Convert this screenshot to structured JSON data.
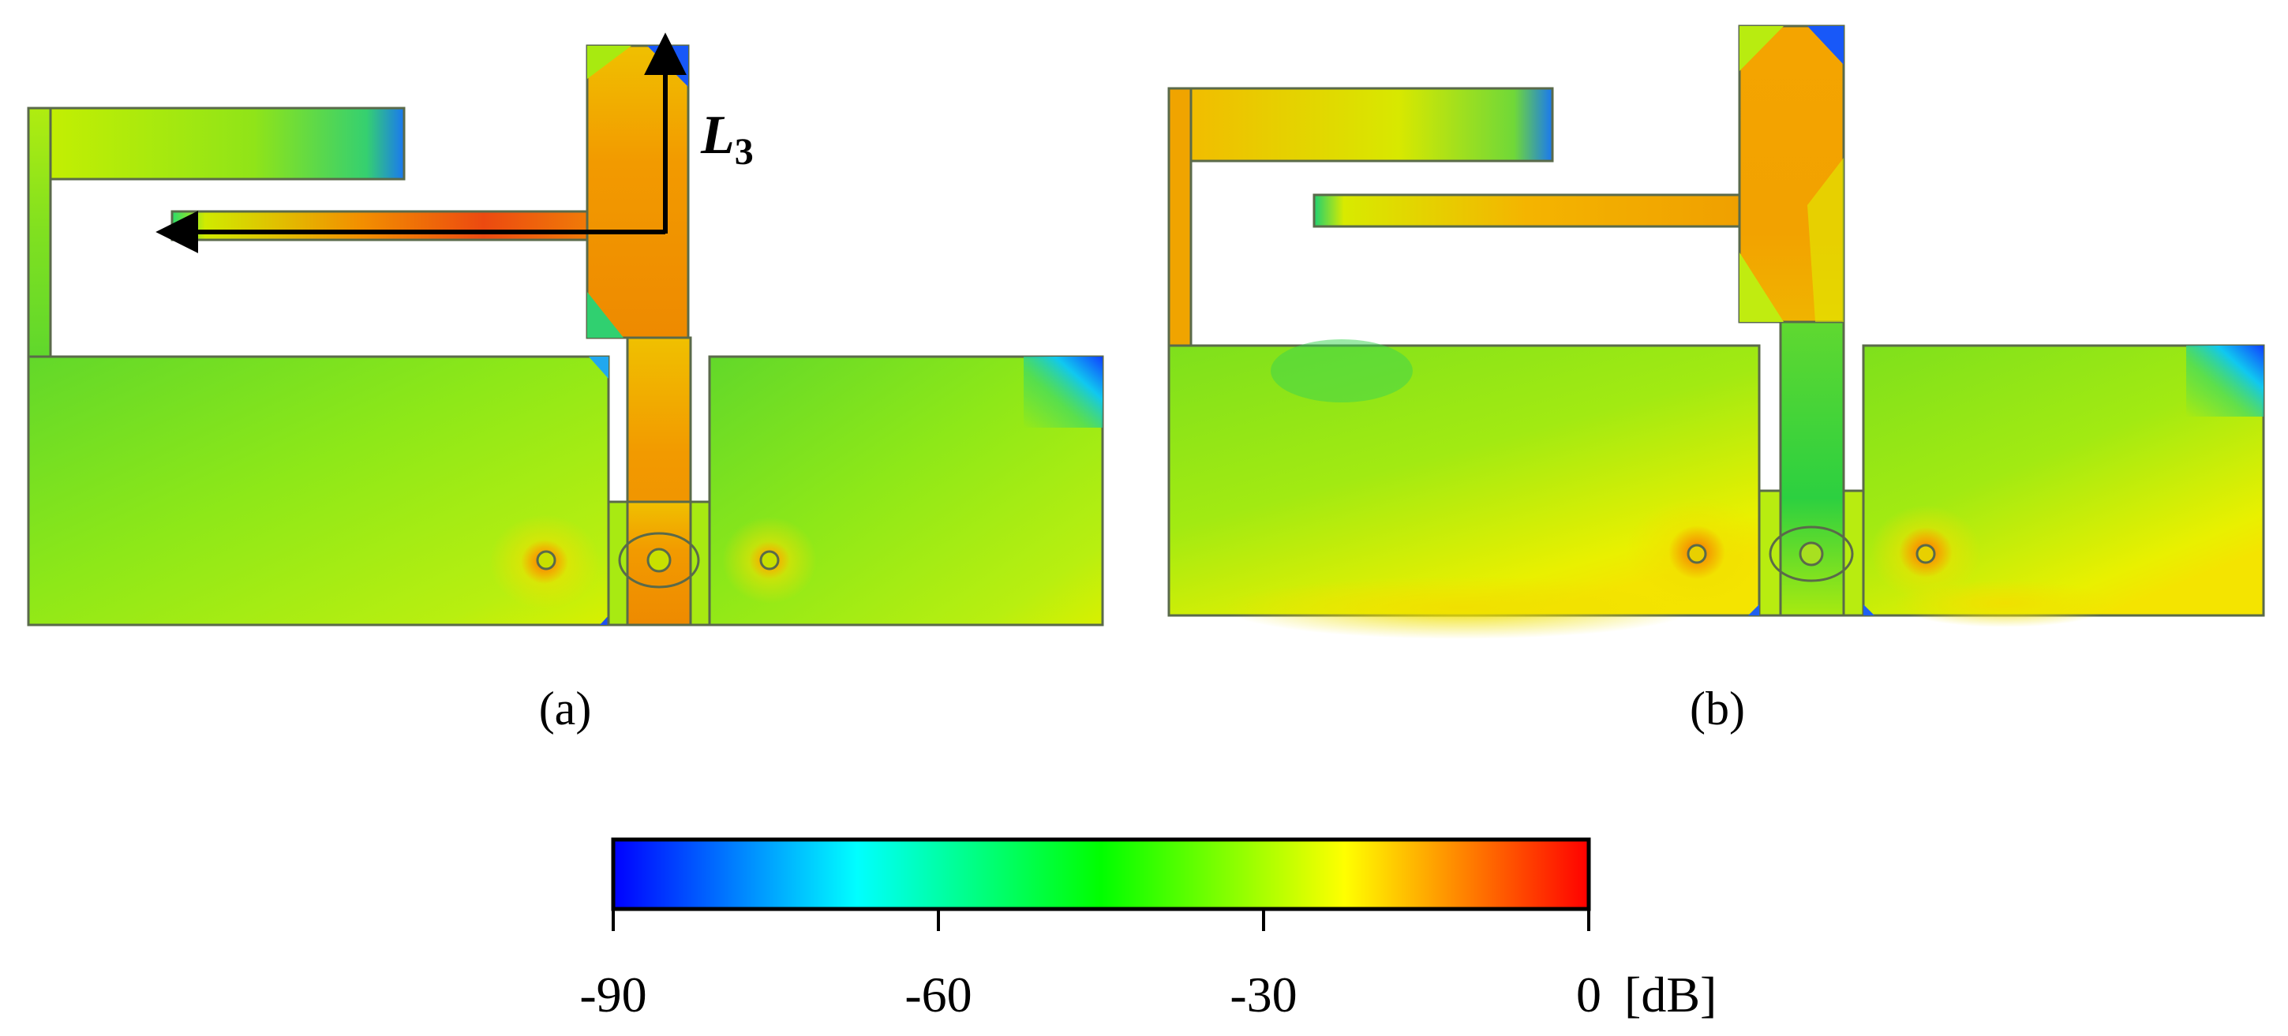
{
  "panels": [
    {
      "label": "(a)"
    },
    {
      "label": "(b)"
    }
  ],
  "annotation": {
    "dimension_symbol": "L",
    "dimension_subscript": "3"
  },
  "colorbar": {
    "ticks": [
      "-90",
      "-60",
      "-30",
      "0"
    ],
    "tick_values": [
      -90,
      -60,
      -30,
      0
    ],
    "unit": "[dB]",
    "range": [
      -90,
      0
    ],
    "colormap": [
      "#0000ff",
      "#00ffff",
      "#00ff00",
      "#ffff00",
      "#ff0000"
    ]
  },
  "colors": {
    "outline": "#5a6a4a",
    "field_low": "#7fe01a",
    "field_mid": "#c8f000",
    "field_high": "#f5a000",
    "field_hot": "#ef5010",
    "corner_null": "#1060ff"
  }
}
